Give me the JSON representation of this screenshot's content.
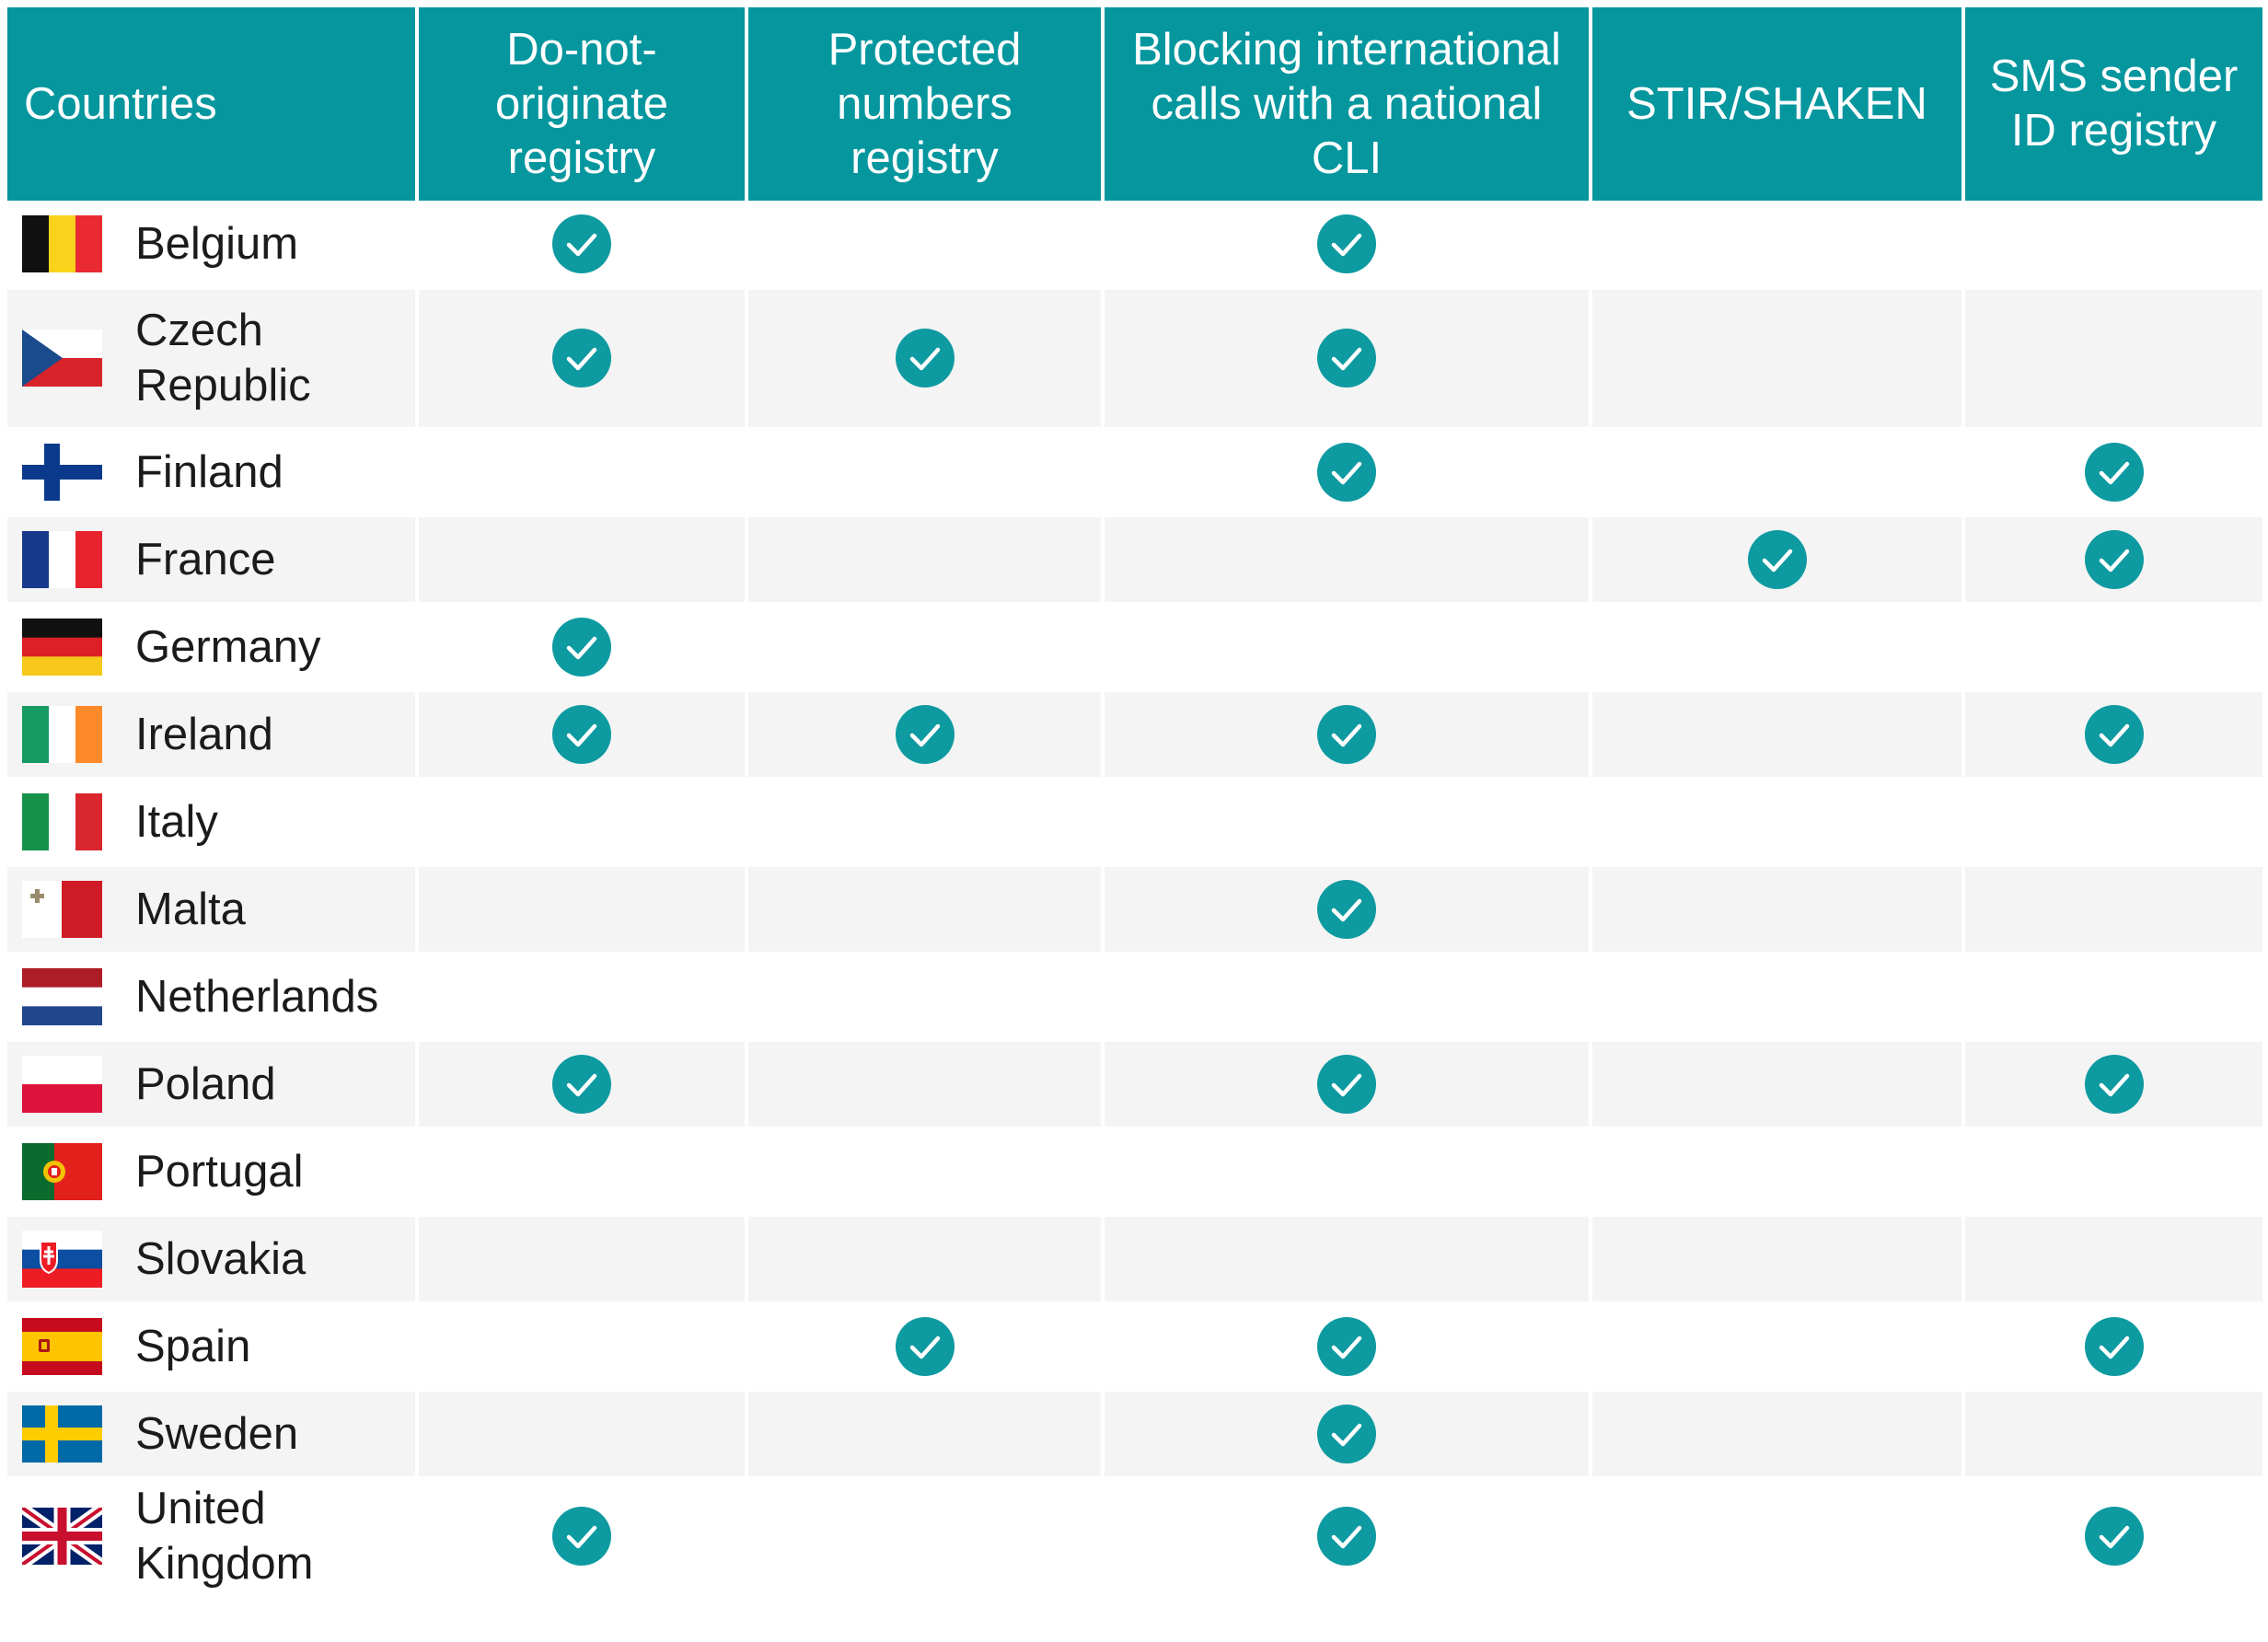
{
  "chart_data": {
    "type": "table",
    "columns": [
      "Countries",
      "Do-not-originate registry",
      "Protected numbers registry",
      "Blocking international calls with a national CLI",
      "STIR/SHAKEN",
      "SMS sender ID registry"
    ],
    "check_color": "#0d9aa0",
    "header_color": "#05969e",
    "rows": [
      {
        "country": "Belgium",
        "flag": "belgium-flag",
        "checks": [
          true,
          false,
          true,
          false,
          false
        ]
      },
      {
        "country": "Czech Republic",
        "flag": "czech-republic-flag",
        "checks": [
          true,
          true,
          true,
          false,
          false
        ]
      },
      {
        "country": "Finland",
        "flag": "finland-flag",
        "checks": [
          false,
          false,
          true,
          false,
          true
        ]
      },
      {
        "country": "France",
        "flag": "france-flag",
        "checks": [
          false,
          false,
          false,
          true,
          true
        ]
      },
      {
        "country": "Germany",
        "flag": "germany-flag",
        "checks": [
          true,
          false,
          false,
          false,
          false
        ]
      },
      {
        "country": "Ireland",
        "flag": "ireland-flag",
        "checks": [
          true,
          true,
          true,
          false,
          true
        ]
      },
      {
        "country": "Italy",
        "flag": "italy-flag",
        "checks": [
          false,
          false,
          false,
          false,
          false
        ]
      },
      {
        "country": "Malta",
        "flag": "malta-flag",
        "checks": [
          false,
          false,
          true,
          false,
          false
        ]
      },
      {
        "country": "Netherlands",
        "flag": "netherlands-flag",
        "checks": [
          false,
          false,
          false,
          false,
          false
        ]
      },
      {
        "country": "Poland",
        "flag": "poland-flag",
        "checks": [
          true,
          false,
          true,
          false,
          true
        ]
      },
      {
        "country": "Portugal",
        "flag": "portugal-flag",
        "checks": [
          false,
          false,
          false,
          false,
          false
        ]
      },
      {
        "country": "Slovakia",
        "flag": "slovakia-flag",
        "checks": [
          false,
          false,
          false,
          false,
          false
        ]
      },
      {
        "country": "Spain",
        "flag": "spain-flag",
        "checks": [
          false,
          true,
          true,
          false,
          true
        ]
      },
      {
        "country": "Sweden",
        "flag": "sweden-flag",
        "checks": [
          false,
          false,
          true,
          false,
          false
        ]
      },
      {
        "country": "United Kingdom",
        "flag": "united-kingdom-flag",
        "checks": [
          true,
          false,
          true,
          false,
          true
        ]
      }
    ]
  }
}
